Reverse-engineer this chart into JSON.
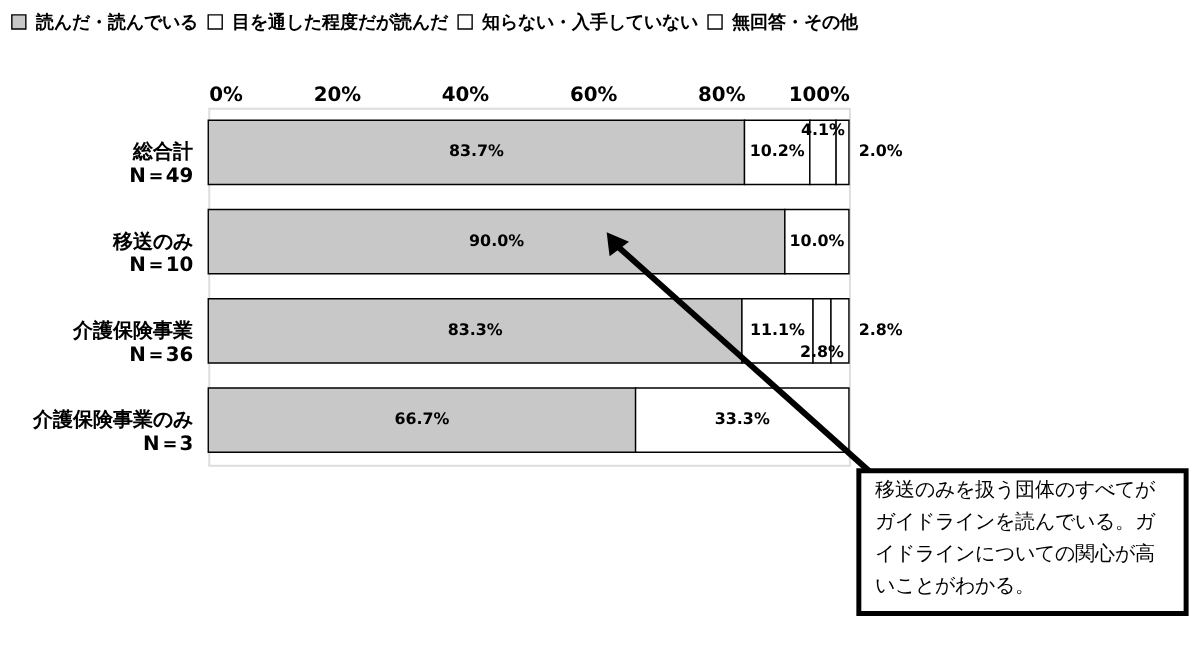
{
  "chart_data": {
    "type": "bar",
    "orientation": "horizontal",
    "stacked": true,
    "categories": [
      "総合計\nN＝49",
      "移送のみ\nN＝10",
      "介護保険事業\nN＝36",
      "介護保険事業のみ\nN＝3"
    ],
    "series": [
      {
        "name": "読んだ・読んでいる",
        "color": "#c8c8c8",
        "values": [
          83.7,
          90.0,
          83.3,
          66.7
        ],
        "value_labels": [
          "83.7%",
          "90.0%",
          "83.3%",
          "66.7%"
        ]
      },
      {
        "name": "目を通した程度だが読んだ",
        "color": "#ffffff",
        "values": [
          10.2,
          10.0,
          11.1,
          33.3
        ],
        "value_labels": [
          "10.2%",
          "10.0%",
          "11.1%",
          "33.3%"
        ]
      },
      {
        "name": "知らない・入手していない",
        "color": "#ffffff",
        "values": [
          4.1,
          null,
          2.8,
          null
        ],
        "value_labels": [
          "4.1%",
          null,
          "2.8%",
          null
        ]
      },
      {
        "name": "無回答・その他",
        "color": "#ffffff",
        "values": [
          2.0,
          null,
          2.8,
          null
        ],
        "value_labels": [
          "2.0%",
          null,
          "2.8%",
          null
        ]
      }
    ],
    "xlim": [
      0,
      100
    ],
    "xticks": [
      {
        "value": 0,
        "label": "0%"
      },
      {
        "value": 20,
        "label": "20%"
      },
      {
        "value": 40,
        "label": "40%"
      },
      {
        "value": 60,
        "label": "60%"
      },
      {
        "value": 80,
        "label": "80%"
      },
      {
        "value": 100,
        "label": "100%"
      }
    ],
    "grid": false,
    "legend": "top left",
    "annotations": [
      "移送のみを扱う団体のすべてがガイドラインを読んでいる。ガイドラインについての関心が高いことがわかる。"
    ]
  }
}
